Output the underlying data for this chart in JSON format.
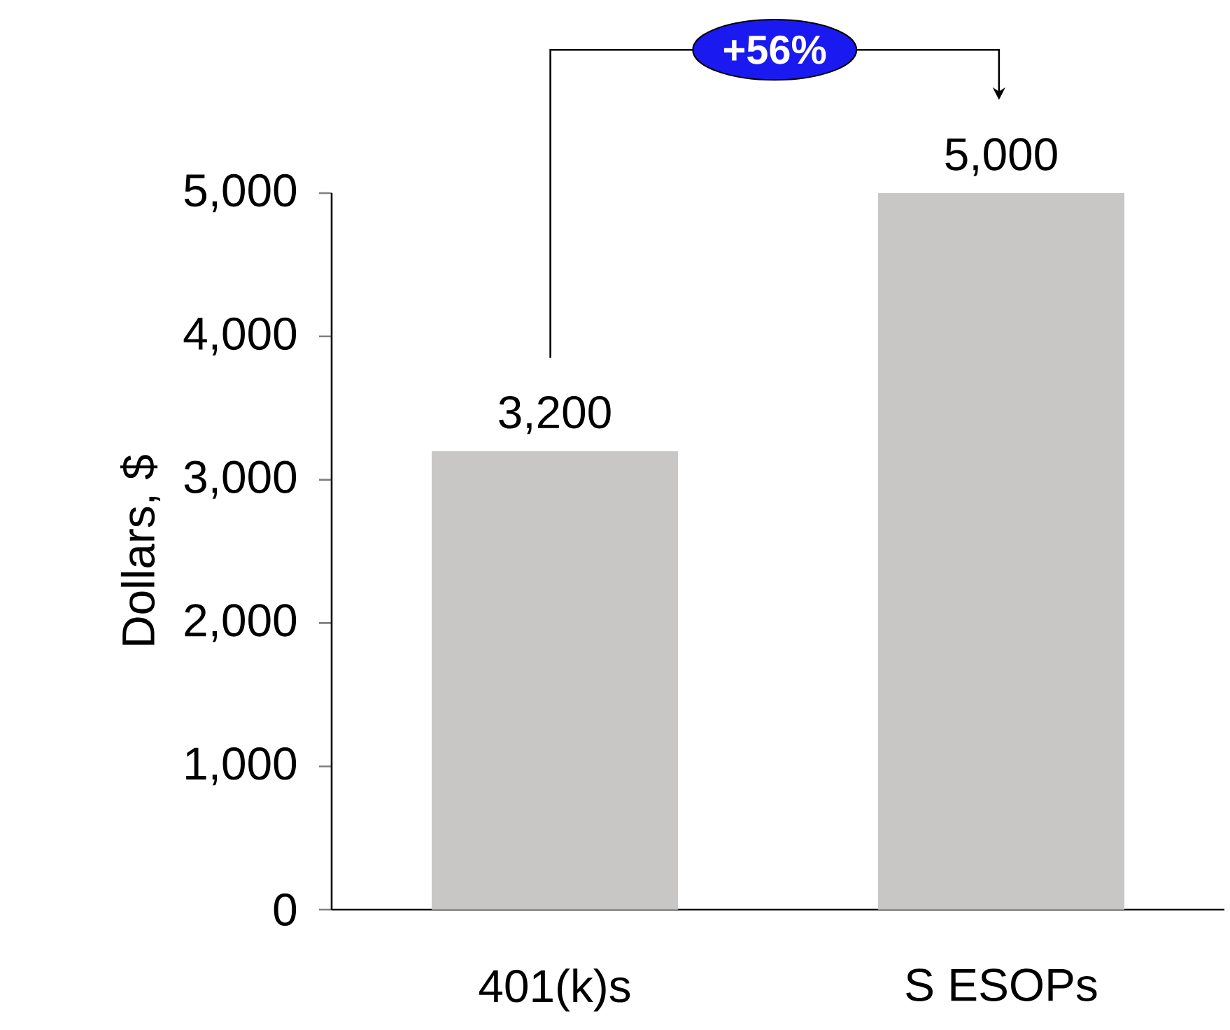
{
  "chart_data": {
    "type": "bar",
    "categories": [
      "401(k)s",
      "S ESOPs"
    ],
    "values": [
      3200,
      5000
    ],
    "color": "#c8c7c6",
    "value_labels": [
      "3,200",
      "5,000"
    ],
    "ylabel": "Dollars, $",
    "ylim": [
      0,
      5000
    ],
    "yticks": [
      {
        "value": 0,
        "label": "0"
      },
      {
        "value": 1000,
        "label": "1,000"
      },
      {
        "value": 2000,
        "label": "2,000"
      },
      {
        "value": 3000,
        "label": "3,000"
      },
      {
        "value": 4000,
        "label": "4,000"
      },
      {
        "value": 5000,
        "label": "5,000"
      }
    ],
    "annotations": [
      "+56%"
    ]
  }
}
